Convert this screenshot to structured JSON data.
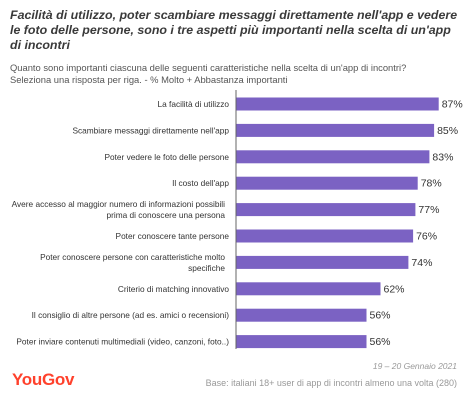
{
  "title": "Facilità di utilizzo, poter scambiare messaggi direttamente nell'app e vedere le foto delle persone, sono i tre aspetti più importanti nella scelta di un'app di incontri",
  "subtitle_line1": "Quanto sono importanti ciascuna delle seguenti caratteristiche nella scelta di un'app di incontri?",
  "subtitle_line2": "Seleziona una risposta per riga.  - % Molto + Abbastanza importanti",
  "date": "19 – 20 Gennaio 2021",
  "base": "Base: italiani 18+ user di app di incontri almeno una volta (280)",
  "logo": "YouGov",
  "colors": {
    "bar": "#7b62c3",
    "axis": "#666666",
    "brand": "#ff412c"
  },
  "chart_data": {
    "type": "bar",
    "orientation": "horizontal",
    "categories": [
      [
        "La facilità di utilizzo"
      ],
      [
        "Scambiare messaggi direttamente nell'app"
      ],
      [
        "Poter vedere le foto delle persone"
      ],
      [
        "Il costo dell'app"
      ],
      [
        "Avere accesso al maggior numero di informazioni possibili",
        "prima di conoscere una persona"
      ],
      [
        "Poter conoscere tante persone"
      ],
      [
        "Poter conoscere persone con caratteristiche molto",
        "specifiche"
      ],
      [
        "Criterio di matching innovativo"
      ],
      [
        "Il consiglio di altre persone (ad es. amici o recensioni)"
      ],
      [
        "Poter inviare contenuti multimediali (video, canzoni, foto..)"
      ]
    ],
    "values": [
      87,
      85,
      83,
      78,
      77,
      76,
      74,
      62,
      56,
      56
    ],
    "value_suffix": "%",
    "xlim": [
      0,
      100
    ]
  }
}
